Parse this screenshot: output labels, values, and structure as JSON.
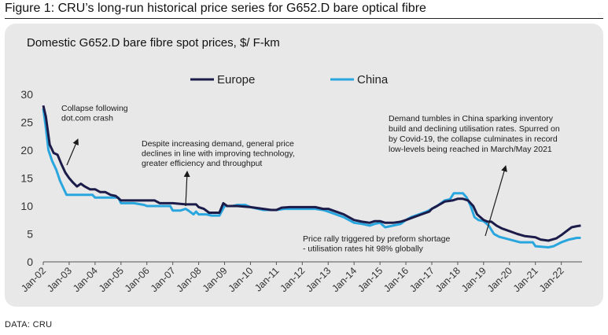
{
  "figure_title": "Figure 1: CRU’s long-run historical price series for G652.D bare optical fibre",
  "source": "DATA: CRU",
  "chart_data": {
    "type": "line",
    "title": "Domestic G652.D bare fibre spot prices, $/ F-km",
    "xlabel": "",
    "ylabel": "",
    "ylim": [
      0,
      30
    ],
    "yticks": [
      "0",
      "5",
      "10",
      "15",
      "20",
      "25",
      "30"
    ],
    "xlim": [
      2002,
      2022.8
    ],
    "xticks": [
      "Jan-02",
      "Jan-03",
      "Jan-04",
      "Jan-05",
      "Jan-06",
      "Jan-07",
      "Jan-08",
      "Jan-09",
      "Jan-10",
      "Jan-11",
      "Jan-12",
      "Jan-13",
      "Jan-14",
      "Jan-15",
      "Jan-16",
      "Jan-17",
      "Jan-18",
      "Jan-19",
      "Jan-20",
      "Jan-21",
      "Jan-22"
    ],
    "grid": false,
    "legend": "top-center",
    "series": [
      {
        "name": "Europe",
        "color": "#1c1c4a",
        "points": [
          [
            2002.0,
            28
          ],
          [
            2002.1,
            26
          ],
          [
            2002.25,
            21
          ],
          [
            2002.4,
            19.5
          ],
          [
            2002.55,
            19.2
          ],
          [
            2002.7,
            17.5
          ],
          [
            2002.85,
            16
          ],
          [
            2003.0,
            15
          ],
          [
            2003.15,
            14.2
          ],
          [
            2003.3,
            13.5
          ],
          [
            2003.45,
            14
          ],
          [
            2003.6,
            13.5
          ],
          [
            2003.8,
            13
          ],
          [
            2004.0,
            13
          ],
          [
            2004.2,
            12.5
          ],
          [
            2004.4,
            12.5
          ],
          [
            2004.6,
            12
          ],
          [
            2004.8,
            11.8
          ],
          [
            2005.0,
            11
          ],
          [
            2005.5,
            11
          ],
          [
            2006.0,
            11
          ],
          [
            2006.3,
            11
          ],
          [
            2006.5,
            10.5
          ],
          [
            2007.0,
            10.5
          ],
          [
            2007.5,
            10.3
          ],
          [
            2007.9,
            10.3
          ],
          [
            2008.0,
            9.8
          ],
          [
            2008.2,
            9.5
          ],
          [
            2008.4,
            8.8
          ],
          [
            2008.6,
            8.8
          ],
          [
            2008.8,
            8.8
          ],
          [
            2008.95,
            10.5
          ],
          [
            2009.1,
            10
          ],
          [
            2009.5,
            10
          ],
          [
            2010.0,
            9.8
          ],
          [
            2010.5,
            9.5
          ],
          [
            2010.8,
            9.3
          ],
          [
            2011.0,
            9.3
          ],
          [
            2011.2,
            9.7
          ],
          [
            2011.5,
            9.8
          ],
          [
            2012.0,
            9.8
          ],
          [
            2012.5,
            9.8
          ],
          [
            2012.8,
            9.5
          ],
          [
            2013.0,
            9.5
          ],
          [
            2013.3,
            9
          ],
          [
            2013.6,
            8.5
          ],
          [
            2014.0,
            7.5
          ],
          [
            2014.3,
            7.2
          ],
          [
            2014.6,
            7
          ],
          [
            2014.8,
            7.3
          ],
          [
            2015.0,
            7.3
          ],
          [
            2015.2,
            7
          ],
          [
            2015.5,
            7
          ],
          [
            2015.8,
            7.2
          ],
          [
            2016.0,
            7.5
          ],
          [
            2016.3,
            8
          ],
          [
            2016.6,
            8.5
          ],
          [
            2016.9,
            9
          ],
          [
            2017.0,
            9.5
          ],
          [
            2017.2,
            10
          ],
          [
            2017.5,
            10.8
          ],
          [
            2017.8,
            11
          ],
          [
            2018.0,
            11.3
          ],
          [
            2018.2,
            11.3
          ],
          [
            2018.4,
            11
          ],
          [
            2018.6,
            10
          ],
          [
            2018.75,
            8.5
          ],
          [
            2019.0,
            7.5
          ],
          [
            2019.15,
            7.2
          ],
          [
            2019.3,
            7.2
          ],
          [
            2019.5,
            6.5
          ],
          [
            2019.7,
            6
          ],
          [
            2020.0,
            5.5
          ],
          [
            2020.3,
            5
          ],
          [
            2020.6,
            4.6
          ],
          [
            2021.0,
            4.4
          ],
          [
            2021.2,
            4
          ],
          [
            2021.5,
            3.8
          ],
          [
            2021.8,
            4.2
          ],
          [
            2022.0,
            4.8
          ],
          [
            2022.2,
            5.5
          ],
          [
            2022.4,
            6.2
          ],
          [
            2022.6,
            6.4
          ],
          [
            2022.75,
            6.5
          ]
        ]
      },
      {
        "name": "China",
        "color": "#2aa6df",
        "points": [
          [
            2002.0,
            27.5
          ],
          [
            2002.1,
            24
          ],
          [
            2002.2,
            20
          ],
          [
            2002.35,
            18
          ],
          [
            2002.5,
            16.5
          ],
          [
            2002.65,
            14.5
          ],
          [
            2002.8,
            13
          ],
          [
            2002.9,
            12
          ],
          [
            2003.2,
            12
          ],
          [
            2003.6,
            12
          ],
          [
            2003.9,
            12
          ],
          [
            2004.0,
            11.5
          ],
          [
            2004.5,
            11.5
          ],
          [
            2004.9,
            11.5
          ],
          [
            2005.0,
            10.5
          ],
          [
            2005.5,
            10.5
          ],
          [
            2005.9,
            10.2
          ],
          [
            2006.0,
            10
          ],
          [
            2006.5,
            10
          ],
          [
            2006.9,
            10
          ],
          [
            2007.0,
            9.2
          ],
          [
            2007.3,
            9.2
          ],
          [
            2007.5,
            9.5
          ],
          [
            2007.6,
            9.2
          ],
          [
            2007.8,
            8.5
          ],
          [
            2007.9,
            9
          ],
          [
            2008.0,
            8.5
          ],
          [
            2008.3,
            8.5
          ],
          [
            2008.5,
            8.3
          ],
          [
            2008.8,
            8.3
          ],
          [
            2009.0,
            10
          ],
          [
            2009.3,
            10
          ],
          [
            2009.5,
            10.2
          ],
          [
            2009.8,
            10.2
          ],
          [
            2010.0,
            9.8
          ],
          [
            2010.5,
            9.3
          ],
          [
            2011.0,
            9.3
          ],
          [
            2011.3,
            9.5
          ],
          [
            2011.8,
            9.5
          ],
          [
            2012.0,
            9.5
          ],
          [
            2012.5,
            9.5
          ],
          [
            2012.8,
            9.3
          ],
          [
            2013.0,
            9
          ],
          [
            2013.3,
            8.5
          ],
          [
            2013.6,
            8
          ],
          [
            2014.0,
            7
          ],
          [
            2014.3,
            6.8
          ],
          [
            2014.6,
            6.5
          ],
          [
            2014.8,
            6.8
          ],
          [
            2015.0,
            7
          ],
          [
            2015.2,
            6.2
          ],
          [
            2015.5,
            6.5
          ],
          [
            2015.8,
            6.8
          ],
          [
            2016.0,
            7.5
          ],
          [
            2016.2,
            8
          ],
          [
            2016.5,
            8.5
          ],
          [
            2016.8,
            9
          ],
          [
            2017.0,
            9.5
          ],
          [
            2017.2,
            10
          ],
          [
            2017.5,
            11
          ],
          [
            2017.7,
            11.2
          ],
          [
            2017.85,
            12.3
          ],
          [
            2018.0,
            12.3
          ],
          [
            2018.2,
            12.3
          ],
          [
            2018.35,
            11.5
          ],
          [
            2018.5,
            10
          ],
          [
            2018.65,
            8
          ],
          [
            2018.8,
            7.5
          ],
          [
            2019.0,
            7.3
          ],
          [
            2019.2,
            6.5
          ],
          [
            2019.4,
            5
          ],
          [
            2019.6,
            4.5
          ],
          [
            2020.0,
            4
          ],
          [
            2020.4,
            3.5
          ],
          [
            2020.9,
            3.5
          ],
          [
            2021.0,
            2.8
          ],
          [
            2021.5,
            2.6
          ],
          [
            2021.7,
            2.8
          ],
          [
            2022.0,
            3.5
          ],
          [
            2022.3,
            4
          ],
          [
            2022.6,
            4.3
          ],
          [
            2022.75,
            4.3
          ]
        ]
      }
    ],
    "annotations": [
      {
        "lines": [
          "Collapse following",
          "dot.com crash"
        ]
      },
      {
        "lines": [
          "Despite increasing demand, general price",
          "declines in line with improving technology,",
          "greater efficiency and throughput"
        ]
      },
      {
        "lines": [
          "Price rally triggered by preform shortage",
          "- utilisation rates hit 98% globally"
        ]
      },
      {
        "lines": [
          "Demand tumbles in China sparking inventory",
          "build and declining utilisation rates. Spurred on",
          "by Covid-19, the collapse culminates in record",
          "low-levels being reached in March/May 2021"
        ]
      }
    ]
  }
}
